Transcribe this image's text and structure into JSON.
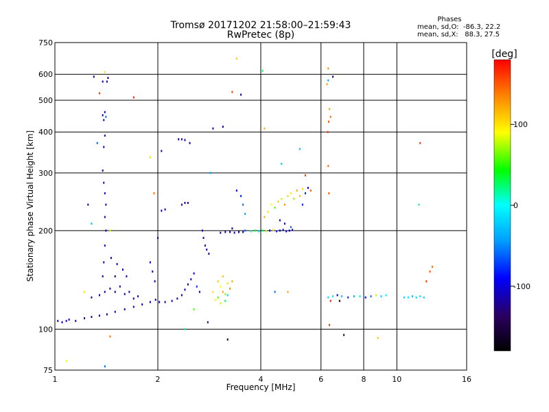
{
  "chart_data": {
    "type": "scatter",
    "title": "Tromsø 20171202 21:58:00–21:59:43",
    "subtitle": "RwPretec (8p)",
    "xlabel": "Frequency [MHz]",
    "ylabel": "Stationary phase Virtual Height [km]",
    "x_scale": "log",
    "y_scale": "log",
    "xlim": [
      1,
      16
    ],
    "ylim": [
      75,
      750
    ],
    "x_ticks": [
      1,
      2,
      4,
      6,
      8,
      10,
      16
    ],
    "y_ticks": [
      75,
      100,
      200,
      300,
      400,
      500,
      600,
      750
    ],
    "grid": true,
    "stats": {
      "heading": "Phases",
      "o_line": "mean, sd,O:  -86.3, 22.2",
      "x_line": "mean, sd,X:   88.3, 27.5"
    },
    "colorbar": {
      "label": "[deg]",
      "range": [
        -180,
        180
      ],
      "ticks": [
        -100,
        0,
        100
      ],
      "colors": [
        "#000000",
        "#2a0060",
        "#0000ff",
        "#00a0ff",
        "#00ffff",
        "#00ff00",
        "#ffff00",
        "#ff8000",
        "#ff0000"
      ]
    },
    "series": [
      {
        "points": [
          {
            "x": 1.02,
            "y": 106,
            "p": -110
          },
          {
            "x": 1.05,
            "y": 105,
            "p": -105
          },
          {
            "x": 1.08,
            "y": 106,
            "p": -100
          },
          {
            "x": 1.1,
            "y": 107,
            "p": -95
          },
          {
            "x": 1.15,
            "y": 106,
            "p": -110
          },
          {
            "x": 1.22,
            "y": 108,
            "p": -120
          },
          {
            "x": 1.28,
            "y": 109,
            "p": -115
          },
          {
            "x": 1.35,
            "y": 110,
            "p": -110
          },
          {
            "x": 1.42,
            "y": 111,
            "p": -115
          },
          {
            "x": 1.5,
            "y": 113,
            "p": -110
          },
          {
            "x": 1.6,
            "y": 115,
            "p": -112
          },
          {
            "x": 1.7,
            "y": 117,
            "p": -108
          },
          {
            "x": 1.8,
            "y": 119,
            "p": -110
          },
          {
            "x": 1.9,
            "y": 121,
            "p": -115
          },
          {
            "x": 1.97,
            "y": 123,
            "p": -110
          },
          {
            "x": 2.02,
            "y": 121,
            "p": -110
          },
          {
            "x": 2.1,
            "y": 121,
            "p": -115
          },
          {
            "x": 2.2,
            "y": 122,
            "p": -108
          },
          {
            "x": 2.28,
            "y": 124,
            "p": -110
          },
          {
            "x": 2.35,
            "y": 127,
            "p": -115
          },
          {
            "x": 2.4,
            "y": 132,
            "p": -110
          },
          {
            "x": 2.45,
            "y": 137,
            "p": -100
          },
          {
            "x": 2.5,
            "y": 142,
            "p": -90
          },
          {
            "x": 2.55,
            "y": 148,
            "p": -95
          },
          {
            "x": 2.6,
            "y": 135,
            "p": -80
          },
          {
            "x": 2.65,
            "y": 130,
            "p": -100
          },
          {
            "x": 1.28,
            "y": 125,
            "p": -110
          },
          {
            "x": 1.35,
            "y": 127,
            "p": -105
          },
          {
            "x": 1.4,
            "y": 130,
            "p": -110
          },
          {
            "x": 1.45,
            "y": 133,
            "p": -115
          },
          {
            "x": 1.5,
            "y": 130,
            "p": -120
          },
          {
            "x": 1.55,
            "y": 135,
            "p": -110
          },
          {
            "x": 1.6,
            "y": 128,
            "p": -115
          },
          {
            "x": 1.65,
            "y": 130,
            "p": -100
          },
          {
            "x": 1.7,
            "y": 124,
            "p": -110
          },
          {
            "x": 1.75,
            "y": 126,
            "p": -105
          },
          {
            "x": 1.46,
            "y": 165,
            "p": -110
          },
          {
            "x": 1.52,
            "y": 158,
            "p": -110
          },
          {
            "x": 1.58,
            "y": 152,
            "p": -105
          },
          {
            "x": 1.62,
            "y": 145,
            "p": -110
          },
          {
            "x": 1.9,
            "y": 160,
            "p": -100
          },
          {
            "x": 1.93,
            "y": 150,
            "p": -110
          },
          {
            "x": 1.96,
            "y": 140,
            "p": -105
          },
          {
            "x": 1.38,
            "y": 145,
            "p": -110
          },
          {
            "x": 1.39,
            "y": 160,
            "p": -110
          },
          {
            "x": 1.4,
            "y": 180,
            "p": -105
          },
          {
            "x": 1.41,
            "y": 200,
            "p": -110
          },
          {
            "x": 1.4,
            "y": 220,
            "p": -115
          },
          {
            "x": 1.41,
            "y": 240,
            "p": -110
          },
          {
            "x": 1.4,
            "y": 260,
            "p": -105
          },
          {
            "x": 1.39,
            "y": 280,
            "p": -110
          },
          {
            "x": 1.38,
            "y": 305,
            "p": -110
          },
          {
            "x": 1.39,
            "y": 360,
            "p": -105
          },
          {
            "x": 1.4,
            "y": 390,
            "p": -110
          },
          {
            "x": 1.38,
            "y": 450,
            "p": -110
          },
          {
            "x": 1.39,
            "y": 435,
            "p": -105
          },
          {
            "x": 1.4,
            "y": 460,
            "p": -110
          },
          {
            "x": 1.41,
            "y": 445,
            "p": -60
          },
          {
            "x": 1.38,
            "y": 570,
            "p": -110
          },
          {
            "x": 1.43,
            "y": 585,
            "p": -110
          },
          {
            "x": 1.42,
            "y": 570,
            "p": -105
          },
          {
            "x": 2.05,
            "y": 230,
            "p": -110
          },
          {
            "x": 2.1,
            "y": 232,
            "p": -105
          },
          {
            "x": 2.35,
            "y": 240,
            "p": -110
          },
          {
            "x": 2.4,
            "y": 243,
            "p": -115
          },
          {
            "x": 2.45,
            "y": 243,
            "p": -110
          },
          {
            "x": 2.3,
            "y": 380,
            "p": -110
          },
          {
            "x": 2.35,
            "y": 380,
            "p": -105
          },
          {
            "x": 2.4,
            "y": 378,
            "p": -110
          },
          {
            "x": 2.48,
            "y": 370,
            "p": -110
          },
          {
            "x": 2.05,
            "y": 350,
            "p": -110
          },
          {
            "x": 2.7,
            "y": 200,
            "p": -110
          },
          {
            "x": 2.72,
            "y": 190,
            "p": -105
          },
          {
            "x": 2.75,
            "y": 180,
            "p": -110
          },
          {
            "x": 2.78,
            "y": 175,
            "p": -115
          },
          {
            "x": 2.82,
            "y": 170,
            "p": -110
          },
          {
            "x": 2.9,
            "y": 410,
            "p": -110
          },
          {
            "x": 3.1,
            "y": 415,
            "p": -110
          },
          {
            "x": 3.05,
            "y": 197,
            "p": -110
          },
          {
            "x": 3.15,
            "y": 198,
            "p": -115
          },
          {
            "x": 3.25,
            "y": 198,
            "p": -110
          },
          {
            "x": 3.35,
            "y": 197,
            "p": -105
          },
          {
            "x": 3.45,
            "y": 198,
            "p": -110
          },
          {
            "x": 3.55,
            "y": 198,
            "p": -115
          },
          {
            "x": 3.3,
            "y": 203,
            "p": -120
          },
          {
            "x": 3.6,
            "y": 200,
            "p": -60
          },
          {
            "x": 3.75,
            "y": 199,
            "p": 10
          },
          {
            "x": 3.85,
            "y": 200,
            "p": 40
          },
          {
            "x": 3.95,
            "y": 199,
            "p": -20
          },
          {
            "x": 4.05,
            "y": 200,
            "p": 30
          },
          {
            "x": 4.15,
            "y": 199,
            "p": 80
          },
          {
            "x": 4.25,
            "y": 200,
            "p": -100
          },
          {
            "x": 4.35,
            "y": 201,
            "p": 100
          },
          {
            "x": 4.45,
            "y": 199,
            "p": -80
          },
          {
            "x": 4.55,
            "y": 200,
            "p": -110
          },
          {
            "x": 4.65,
            "y": 201,
            "p": -100
          },
          {
            "x": 4.75,
            "y": 199,
            "p": -110
          },
          {
            "x": 4.85,
            "y": 200,
            "p": -100
          },
          {
            "x": 4.95,
            "y": 201,
            "p": -110
          },
          {
            "x": 4.1,
            "y": 220,
            "p": 120
          },
          {
            "x": 4.2,
            "y": 228,
            "p": 100
          },
          {
            "x": 4.3,
            "y": 240,
            "p": 90
          },
          {
            "x": 4.4,
            "y": 235,
            "p": 60
          },
          {
            "x": 4.5,
            "y": 245,
            "p": 110
          },
          {
            "x": 4.6,
            "y": 250,
            "p": 80
          },
          {
            "x": 4.7,
            "y": 240,
            "p": 130
          },
          {
            "x": 4.8,
            "y": 255,
            "p": 100
          },
          {
            "x": 4.9,
            "y": 260,
            "p": 95
          },
          {
            "x": 5.0,
            "y": 250,
            "p": 70
          },
          {
            "x": 5.1,
            "y": 265,
            "p": 120
          },
          {
            "x": 5.2,
            "y": 255,
            "p": 110
          },
          {
            "x": 5.3,
            "y": 268,
            "p": 105
          },
          {
            "x": 5.4,
            "y": 260,
            "p": -80
          },
          {
            "x": 5.5,
            "y": 270,
            "p": -110
          },
          {
            "x": 5.6,
            "y": 265,
            "p": 150
          },
          {
            "x": 4.55,
            "y": 215,
            "p": -90
          },
          {
            "x": 4.7,
            "y": 210,
            "p": -120
          },
          {
            "x": 4.9,
            "y": 205,
            "p": -60
          },
          {
            "x": 3.4,
            "y": 265,
            "p": -100
          },
          {
            "x": 3.5,
            "y": 255,
            "p": -80
          },
          {
            "x": 3.55,
            "y": 240,
            "p": -60
          },
          {
            "x": 3.6,
            "y": 225,
            "p": -40
          },
          {
            "x": 3.0,
            "y": 140,
            "p": 110
          },
          {
            "x": 3.05,
            "y": 135,
            "p": 90
          },
          {
            "x": 3.1,
            "y": 130,
            "p": 120
          },
          {
            "x": 3.15,
            "y": 128,
            "p": 70
          },
          {
            "x": 3.2,
            "y": 138,
            "p": 100
          },
          {
            "x": 3.0,
            "y": 125,
            "p": 60
          },
          {
            "x": 2.95,
            "y": 123,
            "p": 90
          },
          {
            "x": 3.25,
            "y": 133,
            "p": 130
          },
          {
            "x": 3.1,
            "y": 145,
            "p": 110
          },
          {
            "x": 3.05,
            "y": 120,
            "p": 80
          },
          {
            "x": 3.15,
            "y": 122,
            "p": 30
          },
          {
            "x": 3.2,
            "y": 127,
            "p": -20
          },
          {
            "x": 2.9,
            "y": 130,
            "p": 100
          },
          {
            "x": 3.3,
            "y": 140,
            "p": 120
          },
          {
            "x": 6.3,
            "y": 125,
            "p": -20
          },
          {
            "x": 6.5,
            "y": 126,
            "p": -10
          },
          {
            "x": 6.7,
            "y": 127,
            "p": -100
          },
          {
            "x": 6.9,
            "y": 126,
            "p": -20
          },
          {
            "x": 7.2,
            "y": 125,
            "p": -80
          },
          {
            "x": 7.5,
            "y": 126,
            "p": -30
          },
          {
            "x": 7.8,
            "y": 126,
            "p": -10
          },
          {
            "x": 8.1,
            "y": 125,
            "p": -90
          },
          {
            "x": 8.4,
            "y": 126,
            "p": -60
          },
          {
            "x": 8.7,
            "y": 127,
            "p": 100
          },
          {
            "x": 9.0,
            "y": 126,
            "p": -20
          },
          {
            "x": 9.3,
            "y": 127,
            "p": -10
          },
          {
            "x": 6.4,
            "y": 122,
            "p": 170
          },
          {
            "x": 6.8,
            "y": 122,
            "p": -170
          },
          {
            "x": 6.35,
            "y": 103,
            "p": 160
          },
          {
            "x": 7.0,
            "y": 96,
            "p": -150
          },
          {
            "x": 10.5,
            "y": 125,
            "p": -20
          },
          {
            "x": 10.8,
            "y": 125,
            "p": -10
          },
          {
            "x": 11.1,
            "y": 126,
            "p": -30
          },
          {
            "x": 11.4,
            "y": 125,
            "p": -20
          },
          {
            "x": 11.7,
            "y": 126,
            "p": -10
          },
          {
            "x": 12.0,
            "y": 125,
            "p": -20
          },
          {
            "x": 12.2,
            "y": 140,
            "p": 160
          },
          {
            "x": 12.5,
            "y": 150,
            "p": 150
          },
          {
            "x": 12.7,
            "y": 155,
            "p": 140
          },
          {
            "x": 6.25,
            "y": 560,
            "p": 120
          },
          {
            "x": 6.3,
            "y": 575,
            "p": -40
          },
          {
            "x": 6.5,
            "y": 590,
            "p": -120
          },
          {
            "x": 6.3,
            "y": 625,
            "p": 130
          },
          {
            "x": 6.35,
            "y": 470,
            "p": 120
          },
          {
            "x": 6.4,
            "y": 445,
            "p": 140
          },
          {
            "x": 6.32,
            "y": 430,
            "p": 150
          },
          {
            "x": 6.28,
            "y": 400,
            "p": 160
          },
          {
            "x": 6.3,
            "y": 315,
            "p": 140
          },
          {
            "x": 6.33,
            "y": 260,
            "p": 150
          },
          {
            "x": 11.7,
            "y": 370,
            "p": 160
          },
          {
            "x": 11.6,
            "y": 240,
            "p": 20
          },
          {
            "x": 1.08,
            "y": 80,
            "p": 90
          },
          {
            "x": 1.22,
            "y": 130,
            "p": 100
          },
          {
            "x": 1.25,
            "y": 240,
            "p": -120
          },
          {
            "x": 1.28,
            "y": 210,
            "p": -30
          },
          {
            "x": 1.33,
            "y": 370,
            "p": -60
          },
          {
            "x": 1.3,
            "y": 590,
            "p": -120
          },
          {
            "x": 1.35,
            "y": 525,
            "p": 160
          },
          {
            "x": 1.4,
            "y": 610,
            "p": 100
          },
          {
            "x": 1.5,
            "y": 145,
            "p": -150
          },
          {
            "x": 1.45,
            "y": 200,
            "p": 80
          },
          {
            "x": 1.7,
            "y": 510,
            "p": 170
          },
          {
            "x": 1.9,
            "y": 335,
            "p": 100
          },
          {
            "x": 1.95,
            "y": 260,
            "p": 140
          },
          {
            "x": 2.0,
            "y": 190,
            "p": -110
          },
          {
            "x": 2.4,
            "y": 100,
            "p": 20
          },
          {
            "x": 2.55,
            "y": 115,
            "p": 60
          },
          {
            "x": 2.85,
            "y": 300,
            "p": -40
          },
          {
            "x": 2.8,
            "y": 105,
            "p": -130
          },
          {
            "x": 3.2,
            "y": 93,
            "p": -160
          },
          {
            "x": 3.3,
            "y": 530,
            "p": 160
          },
          {
            "x": 3.4,
            "y": 670,
            "p": 110
          },
          {
            "x": 3.5,
            "y": 520,
            "p": -120
          },
          {
            "x": 4.05,
            "y": 615,
            "p": 30
          },
          {
            "x": 4.1,
            "y": 410,
            "p": 120
          },
          {
            "x": 4.4,
            "y": 130,
            "p": -60
          },
          {
            "x": 4.6,
            "y": 320,
            "p": -20
          },
          {
            "x": 4.8,
            "y": 130,
            "p": 120
          },
          {
            "x": 5.2,
            "y": 355,
            "p": -30
          },
          {
            "x": 5.3,
            "y": 240,
            "p": -80
          },
          {
            "x": 5.4,
            "y": 295,
            "p": 160
          },
          {
            "x": 8.8,
            "y": 94,
            "p": 110
          },
          {
            "x": 1.4,
            "y": 77,
            "p": -60
          },
          {
            "x": 1.45,
            "y": 95,
            "p": 140
          }
        ]
      }
    ]
  }
}
